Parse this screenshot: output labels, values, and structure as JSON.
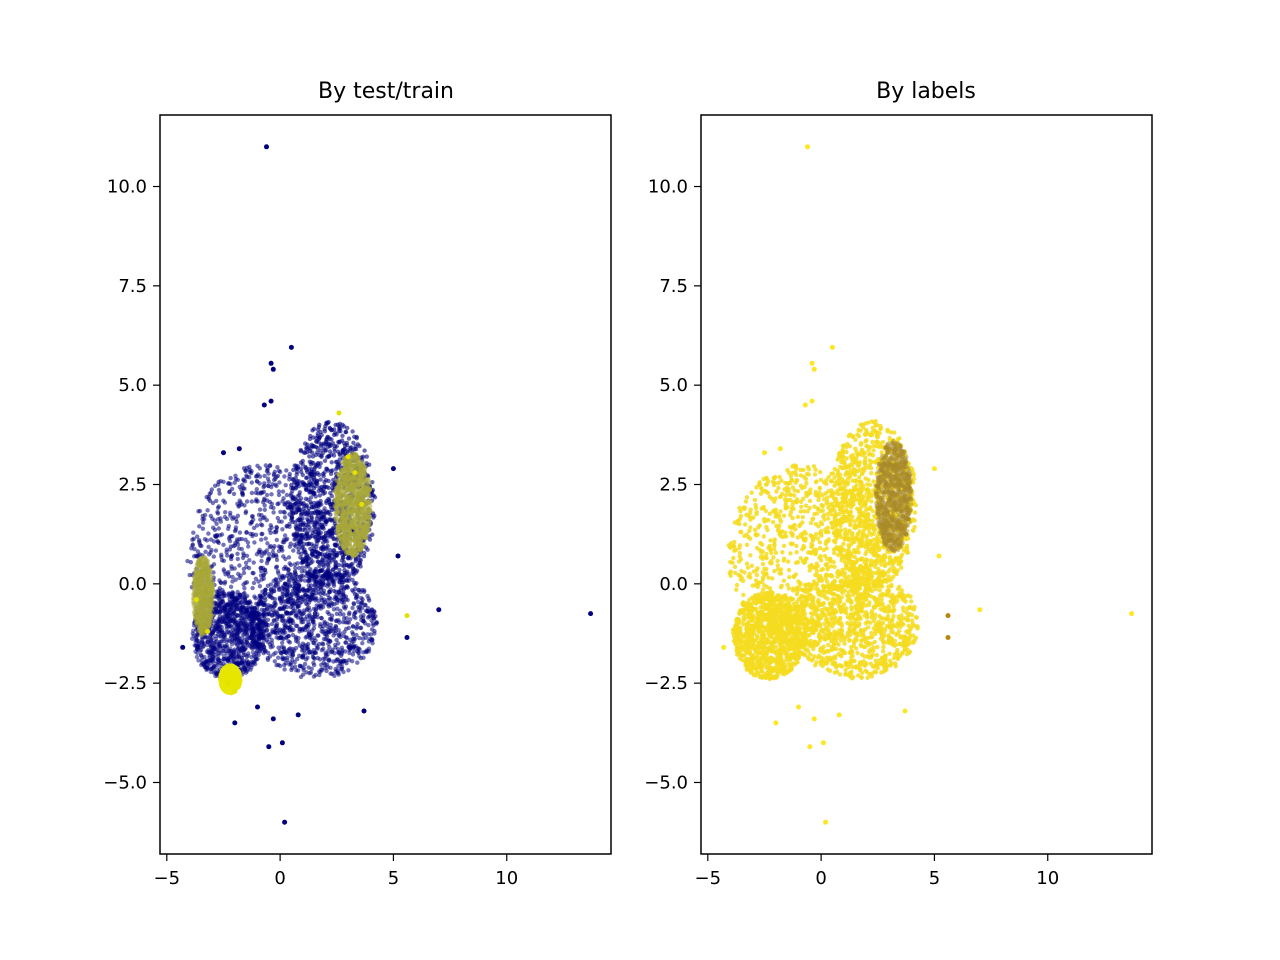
{
  "chart_data": [
    {
      "type": "scatter",
      "title": "By test/train",
      "xlabel": "",
      "ylabel": "",
      "xlim": [
        -5.3,
        14.6
      ],
      "ylim": [
        -6.8,
        11.8
      ],
      "xticks": [
        -5,
        0,
        5,
        10
      ],
      "xtick_labels": [
        "−5",
        "0",
        "5",
        "10"
      ],
      "yticks": [
        -5.0,
        -2.5,
        0.0,
        2.5,
        5.0,
        7.5,
        10.0
      ],
      "ytick_labels": [
        "−5.0",
        "−2.5",
        "0.0",
        "2.5",
        "5.0",
        "7.5",
        "10.0"
      ],
      "grid": false,
      "series": [
        {
          "color": "#00007f",
          "points": [
            [
              -0.6,
              11.0
            ],
            [
              0.5,
              5.95
            ],
            [
              -0.4,
              5.55
            ],
            [
              -0.3,
              5.4
            ],
            [
              -0.4,
              4.6
            ],
            [
              -0.7,
              4.5
            ],
            [
              13.7,
              -0.75
            ],
            [
              7.0,
              -0.65
            ],
            [
              5.6,
              -1.35
            ],
            [
              5.2,
              0.7
            ],
            [
              5.0,
              2.9
            ],
            [
              -0.5,
              -4.1
            ],
            [
              0.2,
              -6.0
            ],
            [
              0.1,
              -4.0
            ],
            [
              -2.0,
              -3.5
            ],
            [
              3.7,
              -3.2
            ],
            [
              -1.8,
              3.4
            ],
            [
              -2.5,
              3.3
            ],
            [
              -4.3,
              -1.6
            ],
            [
              0.8,
              -3.3
            ],
            [
              -0.3,
              -3.4
            ],
            [
              -1.0,
              -3.1
            ]
          ]
        },
        {
          "color": "#e5e000",
          "points": [
            [
              5.6,
              -0.8
            ],
            [
              -2.3,
              -2.5
            ],
            [
              -2.0,
              -2.7
            ],
            [
              -3.7,
              -0.4
            ],
            [
              -3.2,
              -1.2
            ],
            [
              3.3,
              2.8
            ],
            [
              3.6,
              2.0
            ],
            [
              3.0,
              3.2
            ],
            [
              2.6,
              4.3
            ]
          ]
        }
      ],
      "clusters": [
        {
          "color": "#00007f",
          "alpha": 0.55,
          "cx": -0.8,
          "cy": 0.7,
          "rx": 3.3,
          "ry": 2.3
        },
        {
          "color": "#00007f",
          "alpha": 0.6,
          "cx": 2.3,
          "cy": 2.0,
          "rx": 1.9,
          "ry": 2.1
        },
        {
          "color": "#00007f",
          "alpha": 0.55,
          "cx": 1.5,
          "cy": -1.0,
          "rx": 2.8,
          "ry": 1.4
        },
        {
          "color": "#00007f",
          "alpha": 0.5,
          "cx": -2.3,
          "cy": -1.3,
          "rx": 1.6,
          "ry": 1.1
        },
        {
          "color": "#a8a83a",
          "alpha": 0.55,
          "cx": 3.2,
          "cy": 2.0,
          "rx": 0.8,
          "ry": 1.3
        },
        {
          "color": "#e6e600",
          "alpha": 0.8,
          "cx": -2.2,
          "cy": -2.4,
          "rx": 0.45,
          "ry": 0.35
        },
        {
          "color": "#a8a83a",
          "alpha": 0.35,
          "cx": -3.4,
          "cy": -0.3,
          "rx": 0.45,
          "ry": 1.0
        }
      ]
    },
    {
      "type": "scatter",
      "title": "By labels",
      "xlabel": "",
      "ylabel": "",
      "xlim": [
        -5.3,
        14.6
      ],
      "ylim": [
        -6.8,
        11.8
      ],
      "xticks": [
        -5,
        0,
        5,
        10
      ],
      "xtick_labels": [
        "−5",
        "0",
        "5",
        "10"
      ],
      "yticks": [
        -5.0,
        -2.5,
        0.0,
        2.5,
        5.0,
        7.5,
        10.0
      ],
      "ytick_labels": [
        "−5.0",
        "−2.5",
        "0.0",
        "2.5",
        "5.0",
        "7.5",
        "10.0"
      ],
      "grid": false,
      "series": [
        {
          "color": "#fde725",
          "points": [
            [
              -0.6,
              11.0
            ],
            [
              0.5,
              5.95
            ],
            [
              -0.4,
              5.55
            ],
            [
              -0.3,
              5.4
            ],
            [
              -0.4,
              4.6
            ],
            [
              -0.7,
              4.5
            ],
            [
              13.7,
              -0.75
            ],
            [
              7.0,
              -0.65
            ],
            [
              5.2,
              0.7
            ],
            [
              5.0,
              2.9
            ],
            [
              -0.5,
              -4.1
            ],
            [
              0.2,
              -6.0
            ],
            [
              0.1,
              -4.0
            ],
            [
              -2.0,
              -3.5
            ],
            [
              3.7,
              -3.2
            ],
            [
              -1.8,
              3.4
            ],
            [
              -2.5,
              3.3
            ],
            [
              -4.3,
              -1.6
            ],
            [
              0.8,
              -3.3
            ],
            [
              -0.3,
              -3.4
            ],
            [
              -1.0,
              -3.1
            ]
          ]
        },
        {
          "color": "#b8860b",
          "points": [
            [
              5.6,
              -0.8
            ],
            [
              5.6,
              -1.35
            ]
          ]
        }
      ],
      "clusters": [
        {
          "color": "#f4dc20",
          "alpha": 0.85,
          "cx": -0.8,
          "cy": 0.7,
          "rx": 3.3,
          "ry": 2.3
        },
        {
          "color": "#f4dc20",
          "alpha": 0.85,
          "cx": 2.3,
          "cy": 2.0,
          "rx": 1.9,
          "ry": 2.1
        },
        {
          "color": "#f4dc20",
          "alpha": 0.85,
          "cx": 1.5,
          "cy": -1.0,
          "rx": 2.8,
          "ry": 1.4
        },
        {
          "color": "#f4dc20",
          "alpha": 0.85,
          "cx": -2.3,
          "cy": -1.3,
          "rx": 1.6,
          "ry": 1.1
        },
        {
          "color": "#a88a2a",
          "alpha": 0.45,
          "cx": 3.2,
          "cy": 2.2,
          "rx": 0.8,
          "ry": 1.4
        }
      ]
    }
  ]
}
